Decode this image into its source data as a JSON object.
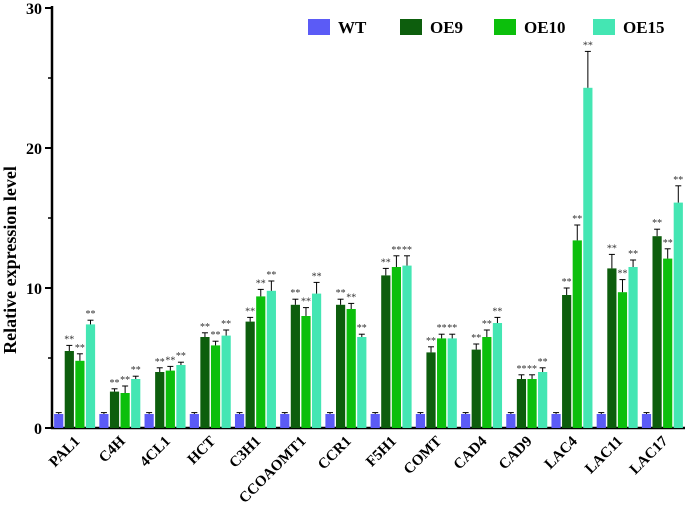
{
  "chart_data": {
    "type": "bar",
    "title": "",
    "xlabel": "",
    "ylabel": "Relative expression level",
    "ylim": [
      0,
      30
    ],
    "yticks": [
      "0",
      "10",
      "20",
      "30"
    ],
    "legend_position": "top-right",
    "categories": [
      "PAL1",
      "C4H",
      "4CL1",
      "HCT",
      "C3H1",
      "CCOAOMT1",
      "CCR1",
      "F5H1",
      "COMT",
      "CAD4",
      "CAD9",
      "LAC4",
      "LAC11",
      "LAC17"
    ],
    "series": [
      {
        "name": "WT",
        "color": "#5b5bf6",
        "values": [
          1,
          1,
          1,
          1,
          1,
          1,
          1,
          1,
          1,
          1,
          1,
          1,
          1,
          1
        ],
        "errors": [
          0.1,
          0.1,
          0.1,
          0.1,
          0.1,
          0.1,
          0.1,
          0.1,
          0.1,
          0.1,
          0.1,
          0.1,
          0.1,
          0.1
        ],
        "labels": [
          "",
          "",
          "",
          "",
          "",
          "",
          "",
          "",
          "",
          "",
          "",
          "",
          "",
          ""
        ]
      },
      {
        "name": "OE9",
        "color": "#0d5e0d",
        "values": [
          5.5,
          2.6,
          4.0,
          6.5,
          7.6,
          8.8,
          8.8,
          10.9,
          5.4,
          5.6,
          3.5,
          9.5,
          11.4,
          13.7
        ],
        "errors": [
          0.4,
          0.2,
          0.3,
          0.3,
          0.3,
          0.4,
          0.4,
          0.5,
          0.4,
          0.4,
          0.3,
          0.5,
          1.0,
          0.5
        ],
        "labels": [
          "**",
          "**",
          "**",
          "**",
          "**",
          "**",
          "**",
          "**",
          "**",
          "**",
          "**",
          "**",
          "**",
          "**"
        ]
      },
      {
        "name": "OE10",
        "color": "#0cbf0c",
        "values": [
          4.8,
          2.5,
          4.1,
          5.9,
          9.4,
          8.0,
          8.5,
          11.5,
          6.4,
          6.5,
          3.5,
          13.4,
          9.7,
          12.1
        ],
        "errors": [
          0.5,
          0.5,
          0.3,
          0.3,
          0.5,
          0.6,
          0.4,
          0.8,
          0.3,
          0.5,
          0.3,
          1.1,
          0.9,
          0.7
        ],
        "labels": [
          "**",
          "**",
          "**",
          "**",
          "**",
          "**",
          "**",
          "**",
          "**",
          "**",
          "**",
          "**",
          "**",
          "**"
        ]
      },
      {
        "name": "OE15",
        "color": "#44e6b3",
        "values": [
          7.4,
          3.5,
          4.5,
          6.6,
          9.8,
          9.6,
          6.5,
          11.6,
          6.4,
          7.5,
          4.0,
          24.3,
          11.5,
          16.1
        ],
        "errors": [
          0.3,
          0.2,
          0.2,
          0.4,
          0.7,
          0.8,
          0.2,
          0.7,
          0.3,
          0.4,
          0.3,
          2.6,
          0.5,
          1.2
        ],
        "labels": [
          "**",
          "**",
          "**",
          "**",
          "**",
          "**",
          "**",
          "**",
          "**",
          "**",
          "**",
          "**",
          "**",
          "**"
        ]
      }
    ]
  }
}
